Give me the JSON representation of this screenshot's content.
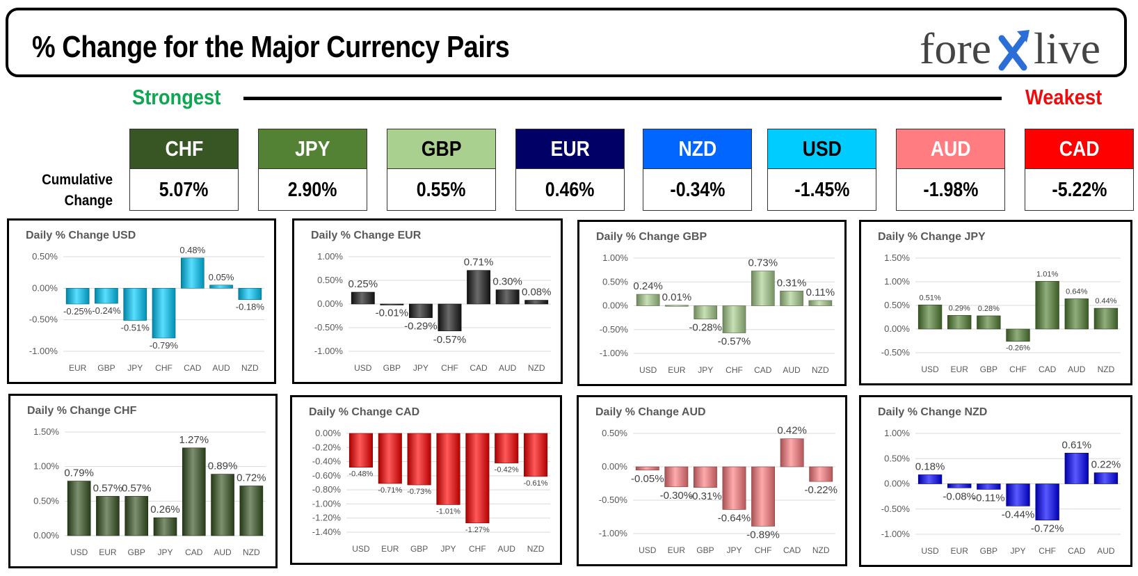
{
  "header": {
    "title": "% Change for the Major Currency Pairs",
    "logo_pre": "fore",
    "logo_post": "live"
  },
  "ranking": {
    "strongest_label": "Strongest",
    "weakest_label": "Weakest",
    "cumulative_label_1": "Cumulative",
    "cumulative_label_2": "Change",
    "currencies": [
      {
        "code": "CHF",
        "value": "5.07%",
        "color": "#375623",
        "text_color": "#ffffff"
      },
      {
        "code": "JPY",
        "value": "2.90%",
        "color": "#548235",
        "text_color": "#ffffff"
      },
      {
        "code": "GBP",
        "value": "0.55%",
        "color": "#a9d08e",
        "text_color": "#000000"
      },
      {
        "code": "EUR",
        "value": "0.46%",
        "color": "#000066",
        "text_color": "#ffffff"
      },
      {
        "code": "NZD",
        "value": "-0.34%",
        "color": "#0066ff",
        "text_color": "#ffffff"
      },
      {
        "code": "USD",
        "value": "-1.45%",
        "color": "#00ccff",
        "text_color": "#000000"
      },
      {
        "code": "AUD",
        "value": "-1.98%",
        "color": "#ff7c80",
        "text_color": "#ffffff"
      },
      {
        "code": "CAD",
        "value": "-5.22%",
        "color": "#ff0000",
        "text_color": "#ffffff"
      }
    ]
  },
  "chart_data": [
    {
      "type": "bar",
      "title": "Daily % Change USD",
      "categories": [
        "EUR",
        "GBP",
        "JPY",
        "CHF",
        "CAD",
        "AUD",
        "NZD"
      ],
      "values": [
        -0.25,
        -0.24,
        -0.51,
        -0.79,
        0.48,
        0.05,
        -0.18
      ],
      "labels": [
        "-0.25%",
        "-0.24%",
        "-0.51%",
        "-0.79%",
        "0.48%",
        "0.05%",
        "-0.18%"
      ],
      "ticks": [
        0.5,
        0,
        -0.5,
        -1
      ],
      "tick_labels": [
        "0.50%",
        "0.00%",
        "-0.50%",
        "-1.00%"
      ],
      "ylim": [
        -1,
        0.5
      ],
      "color": "#00ccff"
    },
    {
      "type": "bar",
      "title": "Daily % Change EUR",
      "categories": [
        "USD",
        "GBP",
        "JPY",
        "CHF",
        "CAD",
        "AUD",
        "NZD"
      ],
      "values": [
        0.25,
        -0.01,
        -0.29,
        -0.57,
        0.71,
        0.3,
        0.08
      ],
      "labels": [
        "0.25%",
        "-0.01%",
        "-0.29%",
        "-0.57%",
        "0.71%",
        "0.30%",
        "0.08%"
      ],
      "ticks": [
        1,
        0.5,
        0,
        -0.5,
        -1
      ],
      "tick_labels": [
        "1.00%",
        "0.50%",
        "0.00%",
        "-0.50%",
        "-1.00%"
      ],
      "ylim": [
        -1,
        1
      ],
      "color": "#1a1a1a"
    },
    {
      "type": "bar",
      "title": "Daily % Change GBP",
      "categories": [
        "USD",
        "EUR",
        "JPY",
        "CHF",
        "CAD",
        "AUD",
        "NZD"
      ],
      "values": [
        0.24,
        0.01,
        -0.28,
        -0.57,
        0.73,
        0.31,
        0.11
      ],
      "labels": [
        "0.24%",
        "0.01%",
        "-0.28%",
        "-0.57%",
        "0.73%",
        "0.31%",
        "0.11%"
      ],
      "ticks": [
        1,
        0.5,
        0,
        -0.5,
        -1
      ],
      "tick_labels": [
        "1.00%",
        "0.50%",
        "0.00%",
        "-0.50%",
        "-1.00%"
      ],
      "ylim": [
        -1,
        1
      ],
      "color": "#a9d08e"
    },
    {
      "type": "bar",
      "title": "Daily % Change JPY",
      "categories": [
        "USD",
        "EUR",
        "GBP",
        "CHF",
        "CAD",
        "AUD",
        "NZD"
      ],
      "values": [
        0.51,
        0.29,
        0.28,
        -0.26,
        1.01,
        0.64,
        0.44
      ],
      "labels": [
        "0.51%",
        "0.29%",
        "0.28%",
        "-0.26%",
        "1.01%",
        "0.64%",
        "0.44%"
      ],
      "ticks": [
        1.5,
        1,
        0.5,
        0,
        -0.5
      ],
      "tick_labels": [
        "1.50%",
        "1.00%",
        "0.50%",
        "0.00%",
        "-0.50%"
      ],
      "ylim": [
        -0.5,
        1.5
      ],
      "color": "#548235",
      "small_labels": true
    },
    {
      "type": "bar",
      "title": "Daily % Change CHF",
      "categories": [
        "USD",
        "EUR",
        "GBP",
        "JPY",
        "CAD",
        "AUD",
        "NZD"
      ],
      "values": [
        0.79,
        0.57,
        0.57,
        0.26,
        1.27,
        0.89,
        0.72
      ],
      "labels": [
        "0.79%",
        "0.57%",
        "0.57%",
        "0.26%",
        "1.27%",
        "0.89%",
        "0.72%"
      ],
      "ticks": [
        1.5,
        1,
        0.5,
        0
      ],
      "tick_labels": [
        "1.50%",
        "1.00%",
        "0.50%",
        "0.00%"
      ],
      "ylim": [
        0,
        1.5
      ],
      "color": "#375623"
    },
    {
      "type": "bar",
      "title": "Daily % Change CAD",
      "categories": [
        "USD",
        "EUR",
        "GBP",
        "JPY",
        "CHF",
        "AUD",
        "NZD"
      ],
      "values": [
        -0.48,
        -0.71,
        -0.73,
        -1.01,
        -1.27,
        -0.42,
        -0.61
      ],
      "labels": [
        "-0.48%",
        "-0.71%",
        "-0.73%",
        "-1.01%",
        "-1.27%",
        "-0.42%",
        "-0.61%"
      ],
      "ticks": [
        0,
        -0.2,
        -0.4,
        -0.6,
        -0.8,
        -1,
        -1.2,
        -1.4
      ],
      "tick_labels": [
        "0.00%",
        "-0.20%",
        "-0.40%",
        "-0.60%",
        "-0.80%",
        "-1.00%",
        "-1.20%",
        "-1.40%"
      ],
      "ylim": [
        -1.4,
        0
      ],
      "color": "#ff0000",
      "small_labels": true
    },
    {
      "type": "bar",
      "title": "Daily % Change AUD",
      "categories": [
        "USD",
        "EUR",
        "GBP",
        "JPY",
        "CHF",
        "CAD",
        "NZD"
      ],
      "values": [
        -0.05,
        -0.3,
        -0.31,
        -0.64,
        -0.89,
        0.42,
        -0.22
      ],
      "labels": [
        "-0.05%",
        "-0.30%",
        "-0.31%",
        "-0.64%",
        "-0.89%",
        "0.42%",
        "-0.22%"
      ],
      "ticks": [
        0.5,
        0,
        -0.5,
        -1
      ],
      "tick_labels": [
        "0.50%",
        "0.00%",
        "-0.50%",
        "-1.00%"
      ],
      "ylim": [
        -1,
        0.5
      ],
      "color": "#ff7c80"
    },
    {
      "type": "bar",
      "title": "Daily % Change NZD",
      "categories": [
        "USD",
        "EUR",
        "GBP",
        "JPY",
        "CHF",
        "CAD",
        "AUD"
      ],
      "values": [
        0.18,
        -0.08,
        -0.11,
        -0.44,
        -0.72,
        0.61,
        0.22
      ],
      "labels": [
        "0.18%",
        "-0.08%",
        "-0.11%",
        "-0.44%",
        "-0.72%",
        "0.61%",
        "0.22%"
      ],
      "ticks": [
        1,
        0.5,
        0,
        -0.5,
        -1
      ],
      "tick_labels": [
        "1.00%",
        "0.50%",
        "0.00%",
        "-0.50%",
        "-1.00%"
      ],
      "ylim": [
        -1,
        1
      ],
      "color": "#0000ff"
    }
  ]
}
